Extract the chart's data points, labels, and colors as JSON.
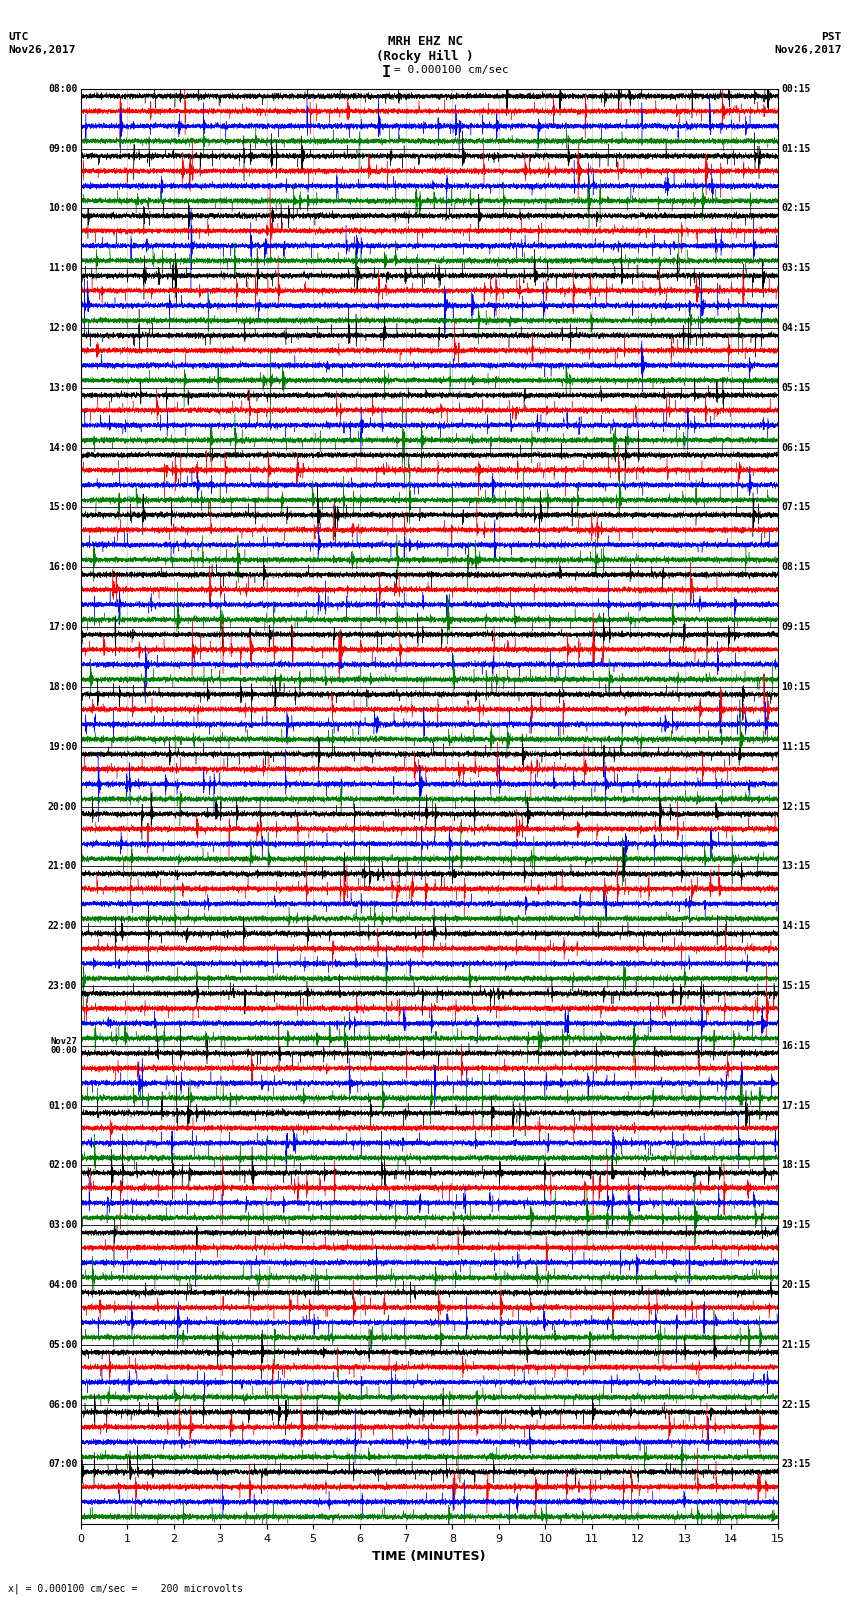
{
  "title_line1": "MRH EHZ NC",
  "title_line2": "(Rocky Hill )",
  "scale_text": "= 0.000100 cm/sec",
  "left_header_line1": "UTC",
  "left_header_line2": "Nov26,2017",
  "right_header_line1": "PST",
  "right_header_line2": "Nov26,2017",
  "footer_text": "x| = 0.000100 cm/sec =    200 microvolts",
  "xlabel": "TIME (MINUTES)",
  "left_times": [
    "08:00",
    "09:00",
    "10:00",
    "11:00",
    "12:00",
    "13:00",
    "14:00",
    "15:00",
    "16:00",
    "17:00",
    "18:00",
    "19:00",
    "20:00",
    "21:00",
    "22:00",
    "23:00",
    "Nov27\n00:00",
    "01:00",
    "02:00",
    "03:00",
    "04:00",
    "05:00",
    "06:00",
    "07:00"
  ],
  "right_times": [
    "00:15",
    "01:15",
    "02:15",
    "03:15",
    "04:15",
    "05:15",
    "06:15",
    "07:15",
    "08:15",
    "09:15",
    "10:15",
    "11:15",
    "12:15",
    "13:15",
    "14:15",
    "15:15",
    "16:15",
    "17:15",
    "18:15",
    "19:15",
    "20:15",
    "21:15",
    "22:15",
    "23:15"
  ],
  "n_rows": 24,
  "traces_per_row": 4,
  "colors": [
    "black",
    "red",
    "blue",
    "green"
  ],
  "xlim": [
    0,
    15
  ],
  "xticks": [
    0,
    1,
    2,
    3,
    4,
    5,
    6,
    7,
    8,
    9,
    10,
    11,
    12,
    13,
    14,
    15
  ],
  "noise_seed": 42,
  "fig_width": 8.5,
  "fig_height": 16.13,
  "dpi": 100,
  "bg_color": "white",
  "trace_amplitude": 0.42,
  "n_points": 9000
}
